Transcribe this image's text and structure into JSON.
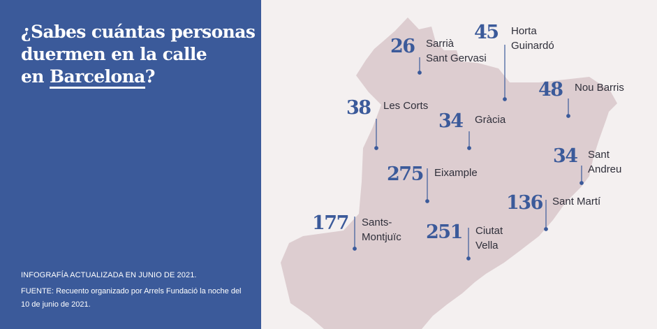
{
  "title": {
    "line1": "¿Sabes cuántas personas",
    "line2": "duermen en la calle",
    "line3_prefix": "en",
    "line3_highlight": "Barcelona",
    "line3_suffix": "?"
  },
  "footer": {
    "updated": "INFOGRAFÍA ACTUALIZADA EN JUNIO DE 2021.",
    "source": "FUENTE:  Recuento organizado por Arrels Fundació la noche del 10 de junio de 2021."
  },
  "colors": {
    "panel": "#3b5a9a",
    "number": "#3b5a9a",
    "map_fill": "#ddcdd0",
    "background": "#f4f0f0"
  },
  "districts": [
    {
      "id": "sarria",
      "count": "26",
      "label_line1": "Sarrià",
      "label_line2": "Sant Gervasi"
    },
    {
      "id": "horta",
      "count": "45",
      "label_line1": "Horta",
      "label_line2": "Guinardó"
    },
    {
      "id": "nou-barris",
      "count": "48",
      "label_line1": "Nou Barris",
      "label_line2": ""
    },
    {
      "id": "les-corts",
      "count": "38",
      "label_line1": "Les Corts",
      "label_line2": ""
    },
    {
      "id": "gracia",
      "count": "34",
      "label_line1": "Gràcia",
      "label_line2": ""
    },
    {
      "id": "sant-andreu",
      "count": "34",
      "label_line1": "Sant",
      "label_line2": "Andreu"
    },
    {
      "id": "eixample",
      "count": "275",
      "label_line1": "Eixample",
      "label_line2": ""
    },
    {
      "id": "sant-marti",
      "count": "136",
      "label_line1": "Sant Martí",
      "label_line2": ""
    },
    {
      "id": "sants",
      "count": "177",
      "label_line1": "Sants-",
      "label_line2": "Montjuïc"
    },
    {
      "id": "ciutat-vella",
      "count": "251",
      "label_line1": "Ciutat",
      "label_line2": "Vella"
    }
  ]
}
